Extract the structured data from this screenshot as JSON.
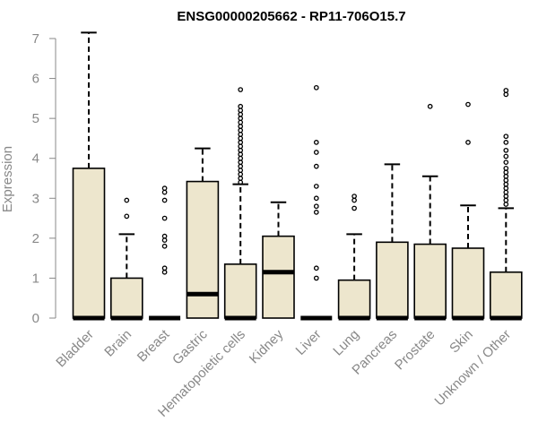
{
  "chart_data": {
    "type": "boxplot",
    "title": "ENSG00000205662 - RP11-706O15.7",
    "ylabel": "Expression",
    "xlabel": "",
    "ylim": [
      0,
      7
    ],
    "yticks": [
      0,
      1,
      2,
      3,
      4,
      5,
      6,
      7
    ],
    "box_fill": "#ede6cd",
    "categories": [
      "Bladder",
      "Brain",
      "Breast",
      "Gastric",
      "Hematopoietic cells",
      "Kidney",
      "Liver",
      "Lung",
      "Pancreas",
      "Prostate",
      "Skin",
      "Unknown / Other"
    ],
    "boxes": [
      {
        "q1": 0,
        "median": 0,
        "q3": 3.75,
        "whisker_low": 0,
        "whisker_high": 7.15,
        "outliers": []
      },
      {
        "q1": 0,
        "median": 0,
        "q3": 1.0,
        "whisker_low": 0,
        "whisker_high": 2.1,
        "outliers": [
          2.55,
          2.95
        ]
      },
      {
        "q1": 0,
        "median": 0,
        "q3": 0,
        "whisker_low": 0,
        "whisker_high": 0,
        "outliers": [
          1.15,
          1.25,
          1.8,
          1.95,
          2.05,
          2.5,
          2.95,
          3.15,
          3.25
        ]
      },
      {
        "q1": 0,
        "median": 0.6,
        "q3": 3.42,
        "whisker_low": 0,
        "whisker_high": 4.25,
        "outliers": []
      },
      {
        "q1": 0,
        "median": 0,
        "q3": 1.35,
        "whisker_low": 0,
        "whisker_high": 3.35,
        "outliers": [
          3.4,
          3.5,
          3.6,
          3.7,
          3.8,
          3.9,
          4.0,
          4.1,
          4.2,
          4.3,
          4.4,
          4.5,
          4.6,
          4.7,
          4.8,
          4.9,
          5.0,
          5.1,
          5.2,
          5.3,
          5.72
        ]
      },
      {
        "q1": 0,
        "median": 1.15,
        "q3": 2.05,
        "whisker_low": 0,
        "whisker_high": 2.9,
        "outliers": []
      },
      {
        "q1": 0,
        "median": 0,
        "q3": 0,
        "whisker_low": 0,
        "whisker_high": 0,
        "outliers": [
          1.0,
          1.25,
          2.65,
          2.8,
          3.0,
          3.3,
          3.8,
          4.15,
          4.4,
          5.77
        ]
      },
      {
        "q1": 0,
        "median": 0,
        "q3": 0.95,
        "whisker_low": 0,
        "whisker_high": 2.1,
        "outliers": [
          2.75,
          2.95,
          3.05
        ]
      },
      {
        "q1": 0,
        "median": 0,
        "q3": 1.9,
        "whisker_low": 0,
        "whisker_high": 3.85,
        "outliers": []
      },
      {
        "q1": 0,
        "median": 0,
        "q3": 1.85,
        "whisker_low": 0,
        "whisker_high": 3.55,
        "outliers": [
          5.3
        ]
      },
      {
        "q1": 0,
        "median": 0,
        "q3": 1.75,
        "whisker_low": 0,
        "whisker_high": 2.82,
        "outliers": [
          4.4,
          5.35
        ]
      },
      {
        "q1": 0,
        "median": 0,
        "q3": 1.15,
        "whisker_low": 0,
        "whisker_high": 2.75,
        "outliers": [
          2.85,
          2.95,
          3.05,
          3.15,
          3.25,
          3.35,
          3.45,
          3.55,
          3.65,
          3.75,
          3.9,
          4.05,
          4.2,
          4.4,
          4.55,
          5.6,
          5.7
        ]
      }
    ]
  }
}
